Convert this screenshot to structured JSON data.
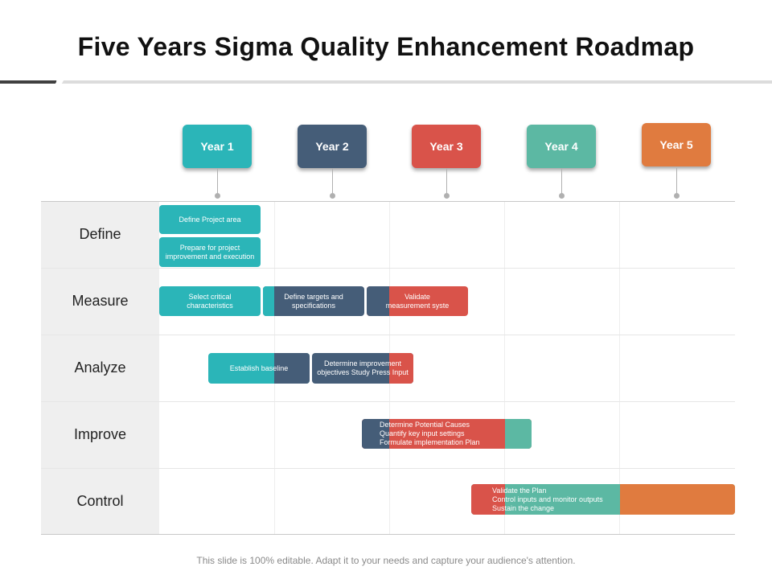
{
  "title": "Five Years Sigma Quality Enhancement Roadmap",
  "colors": {
    "teal": "#2bb5b8",
    "navy": "#455d78",
    "red": "#d9534a",
    "green": "#5cb8a3",
    "orange": "#e07b3f"
  },
  "years": [
    {
      "label": "Year 1",
      "color": "#2bb5b8"
    },
    {
      "label": "Year 2",
      "color": "#455d78"
    },
    {
      "label": "Year 3",
      "color": "#d9534a"
    },
    {
      "label": "Year 4",
      "color": "#5cb8a3"
    },
    {
      "label": "Year 5",
      "color": "#e07b3f"
    }
  ],
  "phases": [
    "Define",
    "Measure",
    "Analyze",
    "Improve",
    "Control"
  ],
  "tasks": [
    {
      "text": "Define Project area"
    },
    {
      "text": "Prepare  for project\nimprovement and execution"
    },
    {
      "text": "Select critical\ncharacteristics"
    },
    {
      "text": "Define targets and\nspecifications"
    },
    {
      "text": "Validate\nmeasurement syste"
    },
    {
      "text": "Establish baseline"
    },
    {
      "text": "Determine improvement\nobjectives Study Press Input"
    },
    {
      "text": "Determine Potential Causes\nQuantify key input settings\nFormulate implementation Plan"
    },
    {
      "text": "Validate the Plan\nControl inputs and monitor outputs\nSustain the change"
    }
  ],
  "footer": "This slide is 100% editable. Adapt it to your needs and capture your audience's attention."
}
